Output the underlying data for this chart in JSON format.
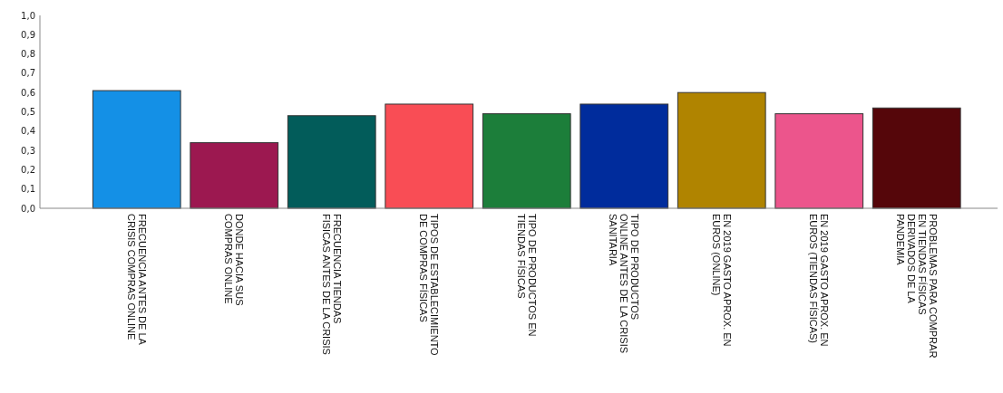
{
  "chart_data": {
    "type": "bar",
    "categories": [
      "FRECUENCIA ANTES DE LA\nCRISIS COMPRAS ONLINE",
      "DONDE HACIA SUS\nCOMPRAS ONLINE",
      "FRECUENCIA TIENDAS\nFISICAS ANTES DE LA CRISIS",
      "TIPOS DE ESTABLECIMIENTO\nDE COMPRAS FÍSICAS",
      "TIPO DE PRODUCTOS EN\nTIENDAS FÍSICAS",
      "TIPO DE PRODUCTOS\nONLINE ANTES DE LA CRISIS\nSANITARIA",
      "EN 2019 GASTO APROX. EN\nEUROS (ONLINE)",
      "EN 2019 GASTO APROX. EN\nEUROS (TIENDAS FÍSICAS)",
      "PROBLEMAS PARA COMPRAR\nEN TIENDAS FÍSICAS\nDERIVADOS DE LA\nPANDEMIA"
    ],
    "values": [
      0.61,
      0.34,
      0.48,
      0.54,
      0.49,
      0.54,
      0.6,
      0.49,
      0.52
    ],
    "colors": [
      "#1490e6",
      "#9c1850",
      "#025c5a",
      "#f94d55",
      "#1c7e3a",
      "#002c9c",
      "#b08400",
      "#ec558c",
      "#55060a"
    ],
    "ylim": [
      0,
      1
    ],
    "yticks": [
      {
        "value": 0,
        "label": "0,0"
      },
      {
        "value": 0.1,
        "label": "0,1"
      },
      {
        "value": 0.2,
        "label": "0,2"
      },
      {
        "value": 0.3,
        "label": "0,3"
      },
      {
        "value": 0.4,
        "label": "0,4"
      },
      {
        "value": 0.5,
        "label": "0,5"
      },
      {
        "value": 0.6,
        "label": "0,6"
      },
      {
        "value": 0.7,
        "label": "0,7"
      },
      {
        "value": 0.8,
        "label": "0,8"
      },
      {
        "value": 0.9,
        "label": "0,9"
      },
      {
        "value": 1,
        "label": "1,0"
      }
    ],
    "grid": false
  }
}
